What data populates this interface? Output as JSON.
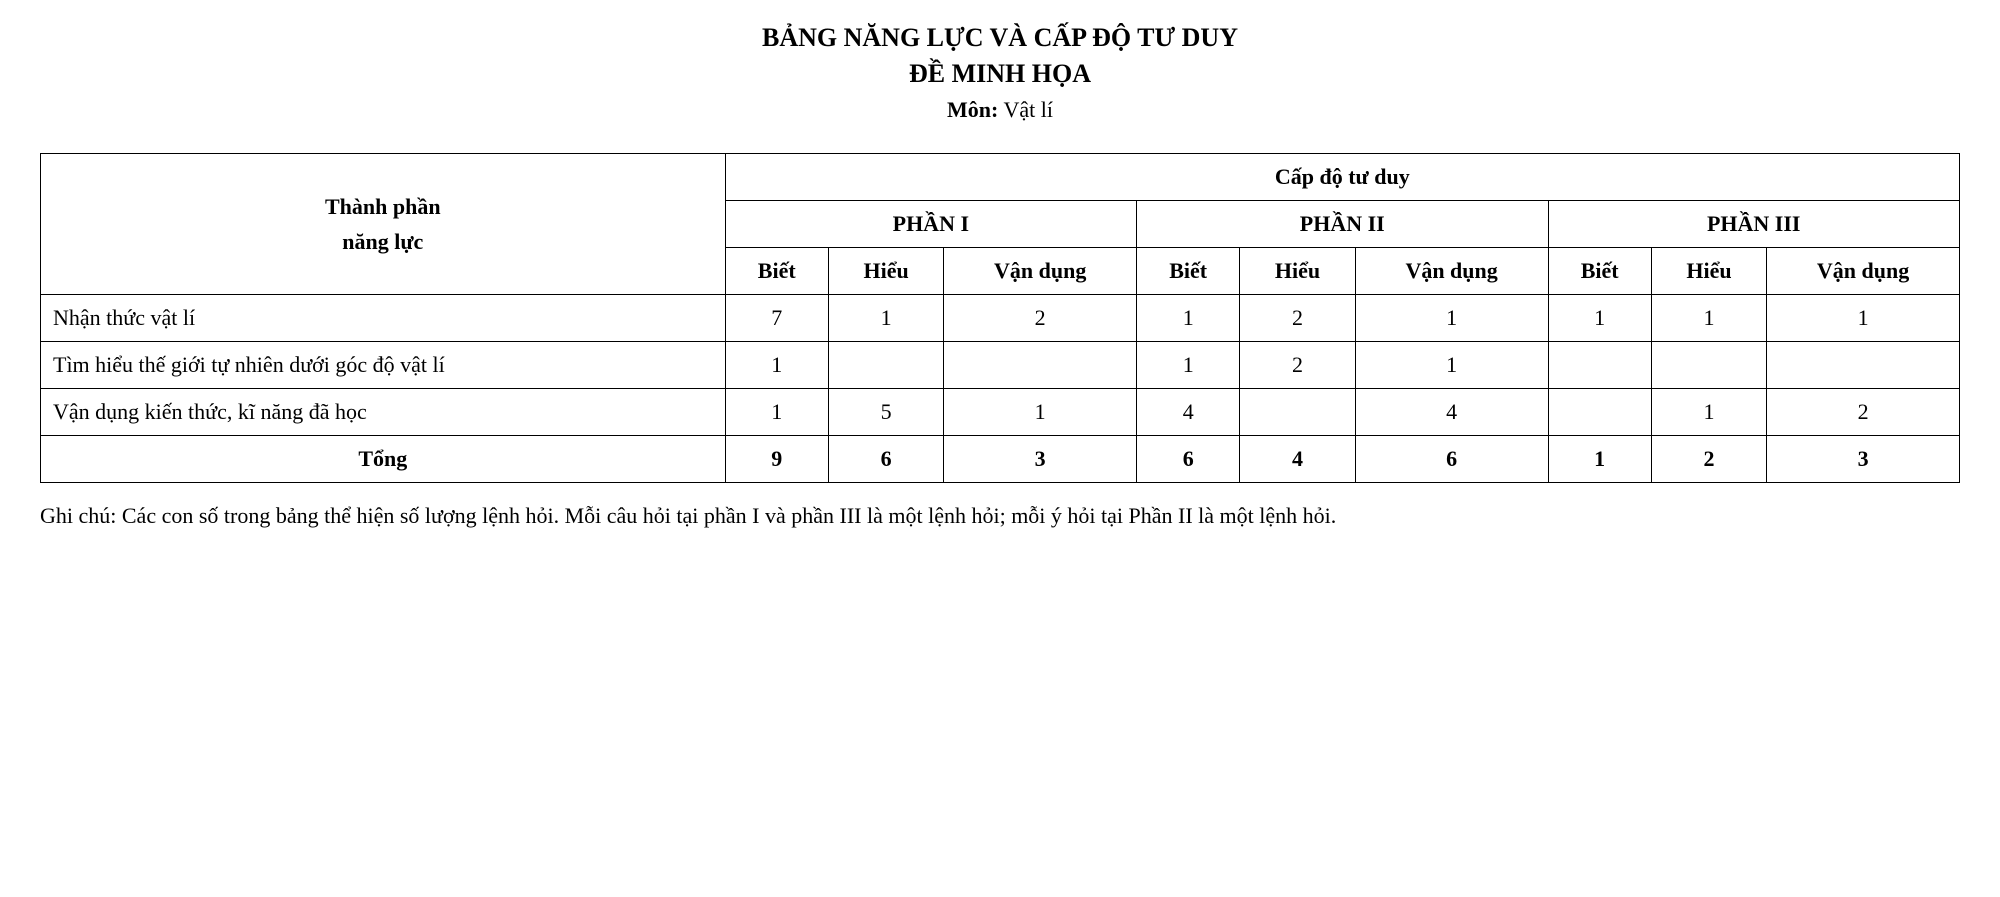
{
  "header": {
    "title1": "BẢNG NĂNG LỰC VÀ CẤP ĐỘ TƯ DUY",
    "title2": "ĐỀ MINH HỌA",
    "subject_label": "Môn:",
    "subject_value": "Vật lí"
  },
  "table": {
    "col_group_label_line1": "Thành phần",
    "col_group_label_line2": "năng lực",
    "top_header": "Cấp độ tư duy",
    "parts": [
      "PHẦN I",
      "PHẦN II",
      "PHẦN III"
    ],
    "sub_headers": [
      "Biết",
      "Hiểu",
      "Vận dụng"
    ],
    "rows": [
      {
        "label": "Nhận thức vật lí",
        "values": [
          "7",
          "1",
          "2",
          "1",
          "2",
          "1",
          "1",
          "1",
          "1"
        ]
      },
      {
        "label": "Tìm hiểu thế giới tự nhiên dưới góc độ vật lí",
        "values": [
          "1",
          "",
          "",
          "1",
          "2",
          "1",
          "",
          "",
          ""
        ]
      },
      {
        "label": "Vận dụng kiến thức, kĩ năng đã học",
        "values": [
          "1",
          "5",
          "1",
          "4",
          "",
          "4",
          "",
          "1",
          "2"
        ]
      }
    ],
    "total_label": "Tổng",
    "total_values": [
      "9",
      "6",
      "3",
      "6",
      "4",
      "6",
      "1",
      "2",
      "3"
    ]
  },
  "footnote": "Ghi chú: Các con số trong bảng thể hiện số lượng lệnh hỏi. Mỗi câu hỏi tại phần I và phần III là một lệnh hỏi; mỗi ý hỏi tại Phần II là một lệnh hỏi."
}
